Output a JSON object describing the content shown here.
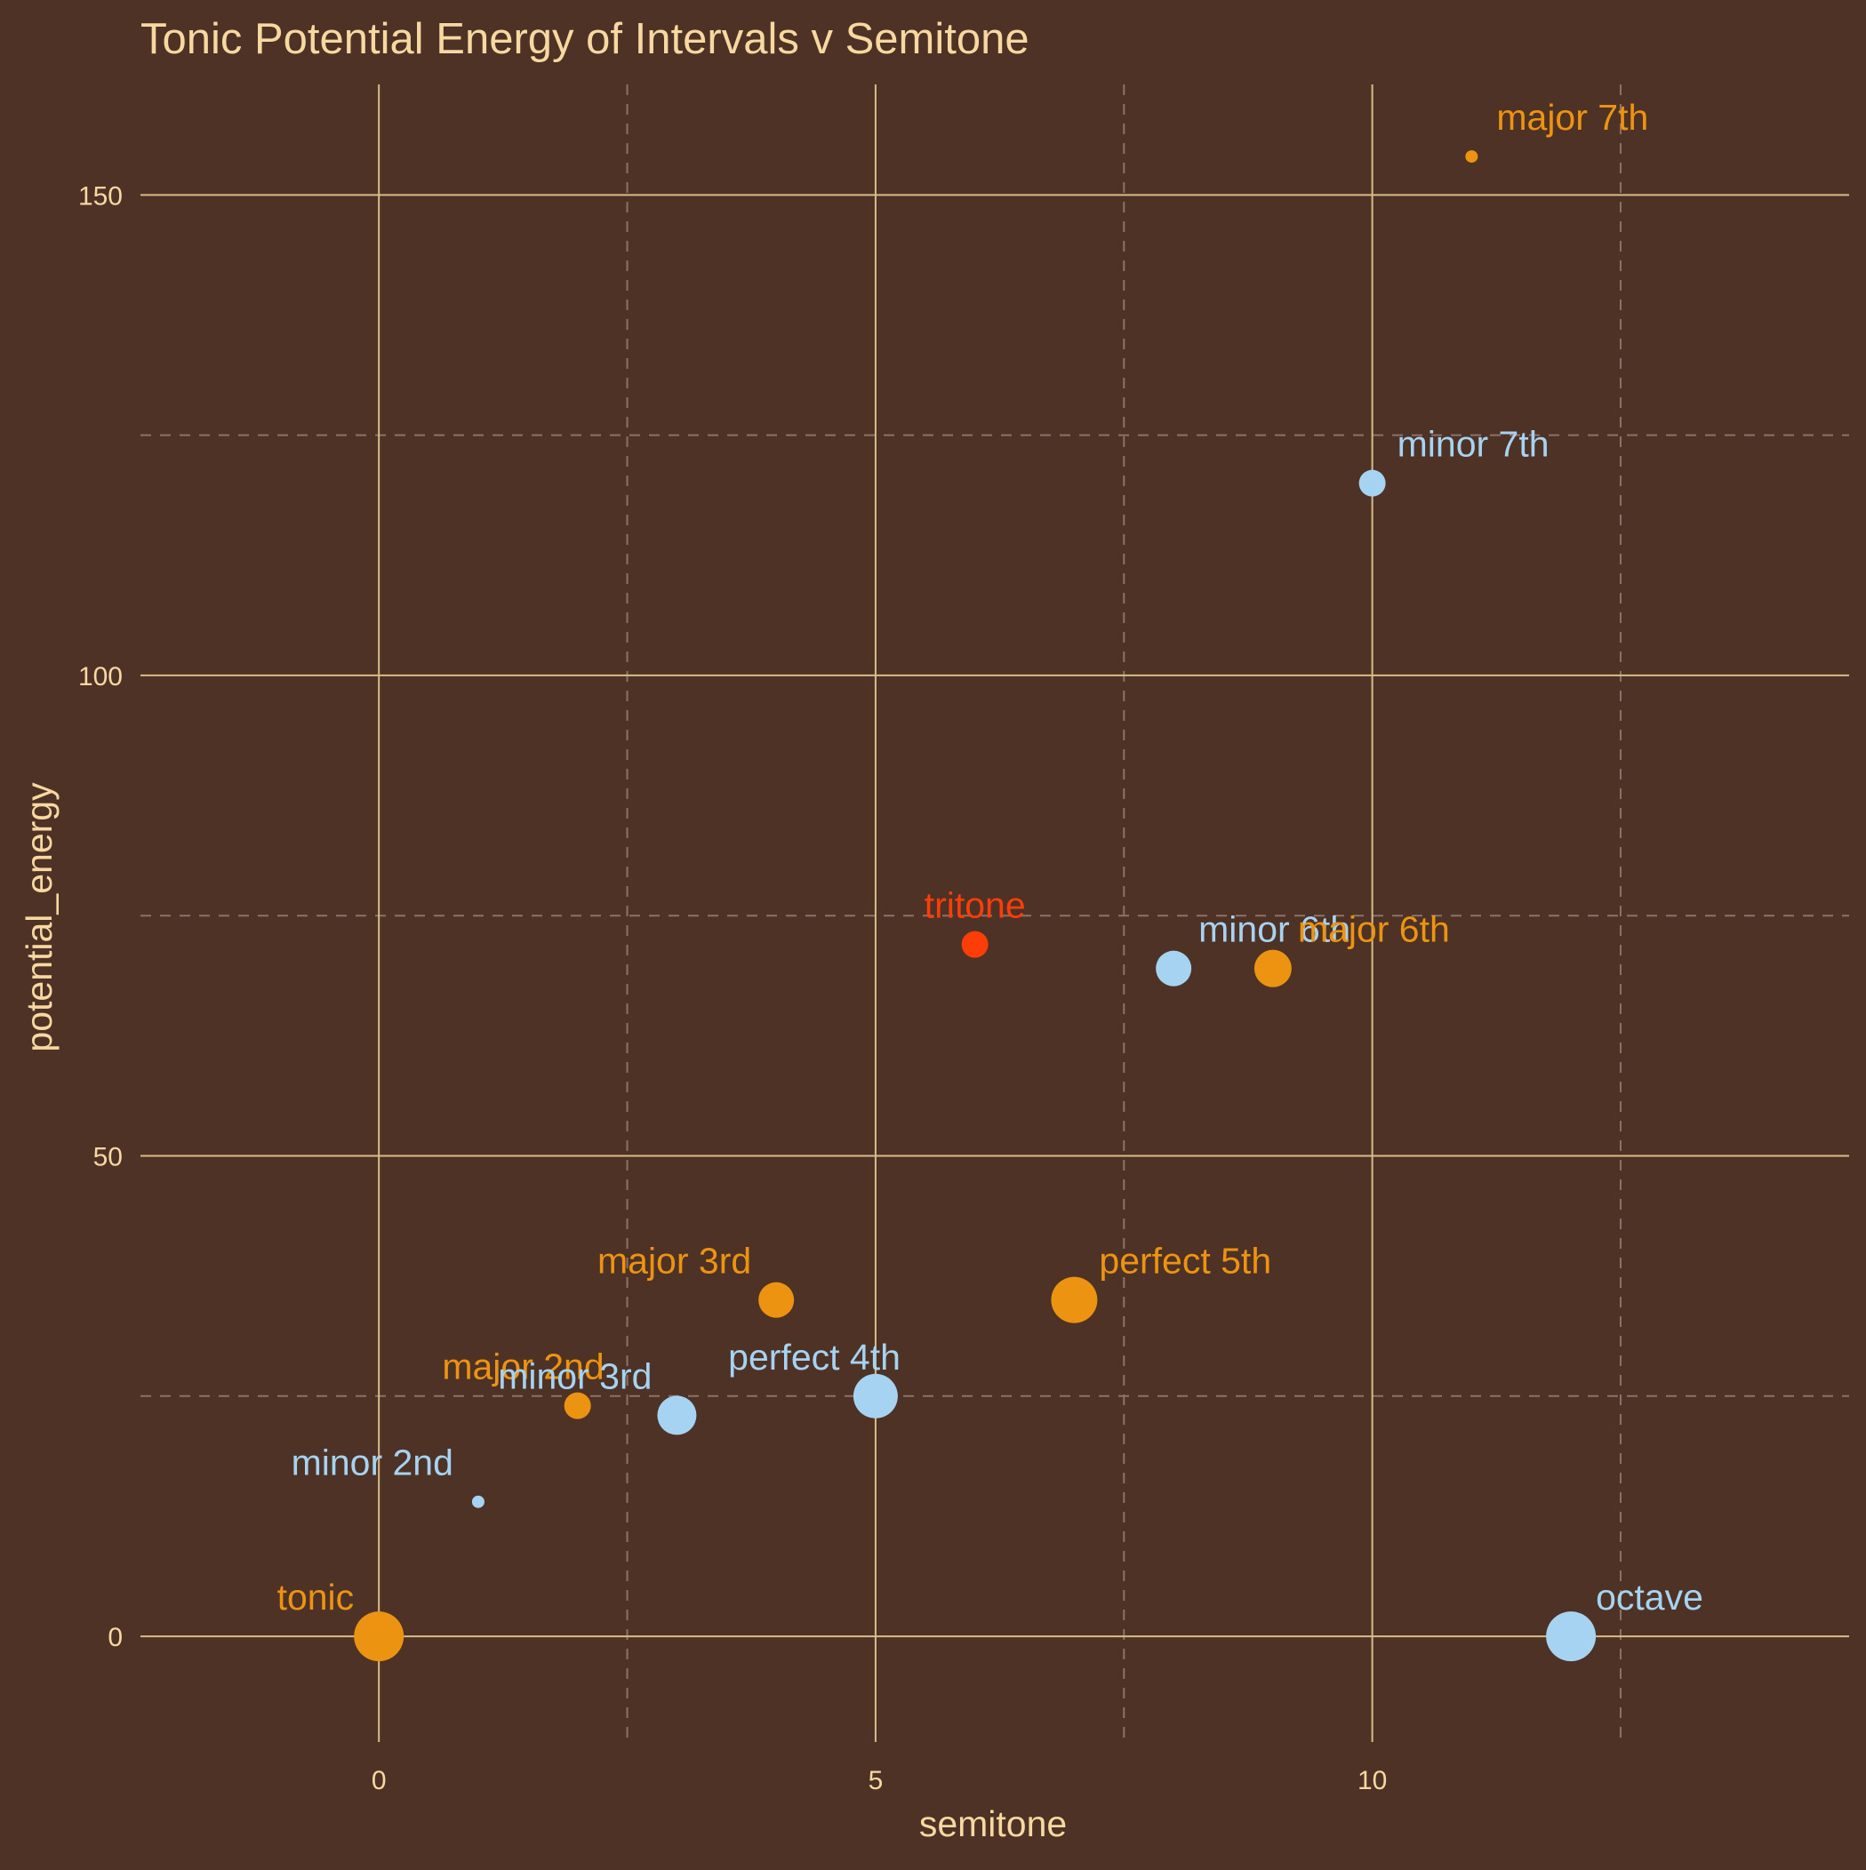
{
  "chart_data": {
    "type": "scatter",
    "title": "Tonic Potential Energy of Intervals v Semitone",
    "xlabel": "semitone",
    "ylabel": "potential_energy",
    "xlim": [
      -2.4,
      14.8
    ],
    "ylim": [
      -11,
      161.5
    ],
    "x_ticks": [
      0,
      5,
      10
    ],
    "y_ticks": [
      0,
      50,
      100,
      150
    ],
    "x_minor_grid": [
      2.5,
      7.5,
      12.5
    ],
    "y_minor_grid": [
      25,
      75,
      125
    ],
    "grid": true,
    "legend": "none",
    "colors": {
      "background": "#4f3226",
      "text": "#f6d8a0",
      "grid_major": "#d9bd86",
      "grid_minor": "#8a7366",
      "orange": "#ec9411",
      "blue": "#a6d3f1",
      "red": "#fb3d08"
    },
    "points": [
      {
        "label": "tonic",
        "x": 0,
        "y": 0,
        "color": "orange",
        "size": 28,
        "anchor": "end",
        "dx": -28,
        "dy": -30
      },
      {
        "label": "minor 2nd",
        "x": 1,
        "y": 14,
        "color": "blue",
        "size": 7,
        "anchor": "end",
        "dx": -28,
        "dy": -30
      },
      {
        "label": "major 2nd",
        "x": 2,
        "y": 24,
        "color": "orange",
        "size": 15,
        "anchor": "end",
        "dx": 30,
        "dy": -30
      },
      {
        "label": "minor 3rd",
        "x": 3,
        "y": 23,
        "color": "blue",
        "size": 22,
        "anchor": "end",
        "dx": -28,
        "dy": -30
      },
      {
        "label": "major 3rd",
        "x": 4,
        "y": 35,
        "color": "orange",
        "size": 20,
        "anchor": "end",
        "dx": -28,
        "dy": -30
      },
      {
        "label": "perfect 4th",
        "x": 5,
        "y": 25,
        "color": "blue",
        "size": 25,
        "anchor": "end",
        "dx": 28,
        "dy": -30
      },
      {
        "label": "tritone",
        "x": 6,
        "y": 72,
        "color": "red",
        "size": 15,
        "anchor": "middle",
        "dx": 0,
        "dy": -30
      },
      {
        "label": "perfect 5th",
        "x": 7,
        "y": 35,
        "color": "orange",
        "size": 26,
        "anchor": "start",
        "dx": 28,
        "dy": -30
      },
      {
        "label": "minor 6th",
        "x": 8,
        "y": 69.5,
        "color": "blue",
        "size": 20,
        "anchor": "start",
        "dx": 28,
        "dy": -30
      },
      {
        "label": "major 6th",
        "x": 9,
        "y": 69.5,
        "color": "orange",
        "size": 21,
        "anchor": "start",
        "dx": 28,
        "dy": -30
      },
      {
        "label": "minor 7th",
        "x": 10,
        "y": 120,
        "color": "blue",
        "size": 15,
        "anchor": "start",
        "dx": 28,
        "dy": -30
      },
      {
        "label": "major 7th",
        "x": 11,
        "y": 154,
        "color": "orange",
        "size": 7,
        "anchor": "start",
        "dx": 28,
        "dy": -30
      },
      {
        "label": "octave",
        "x": 12,
        "y": 0,
        "color": "blue",
        "size": 28,
        "anchor": "start",
        "dx": 28,
        "dy": -30
      }
    ]
  }
}
